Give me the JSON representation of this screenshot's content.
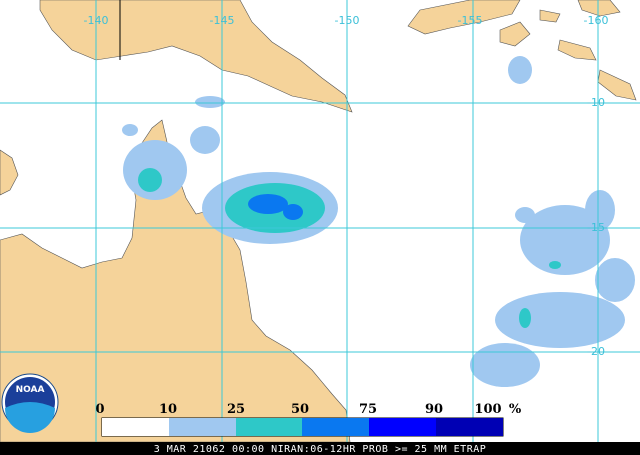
{
  "map": {
    "lon_labels": [
      "-140",
      "-145",
      "-150",
      "-155",
      "-160"
    ],
    "lat_labels": [
      "-10",
      "-15",
      "-20"
    ]
  },
  "legend": {
    "labels": [
      "0",
      "10",
      "25",
      "50",
      "75",
      "90",
      "100"
    ],
    "unit": "%"
  },
  "logo": "NOAA",
  "footer": "3 MAR 21062 00:00 NIRAN:06-12HR PROB >= 25 MM ETRAP"
}
